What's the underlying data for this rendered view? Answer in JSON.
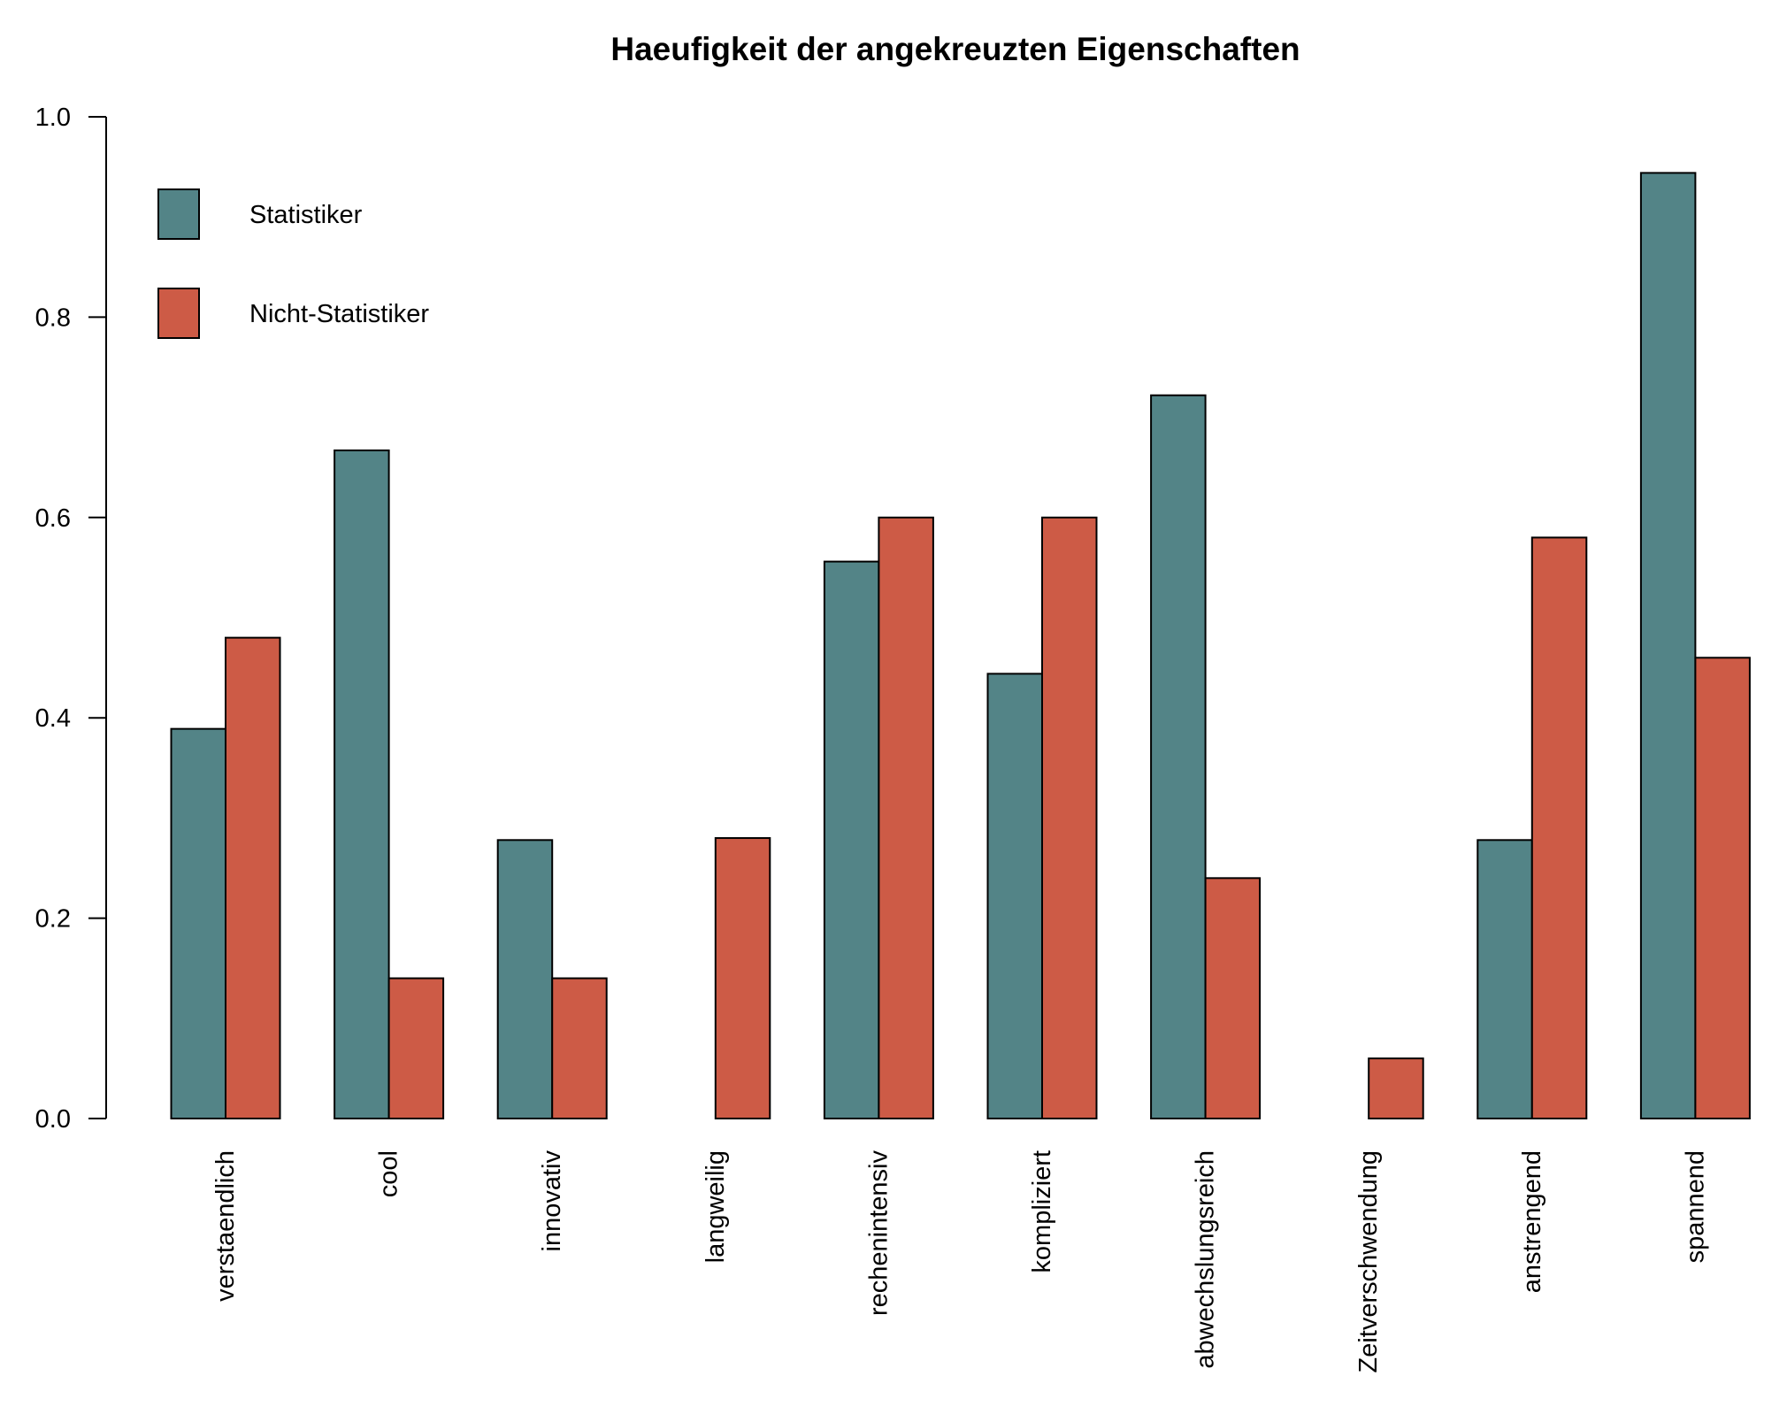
{
  "chart_data": {
    "type": "bar",
    "title": "Haeufigkeit der angekreuzten Eigenschaften",
    "xlabel": "",
    "ylabel": "",
    "ylim": [
      0,
      1.0
    ],
    "yticks": [
      0.0,
      0.2,
      0.4,
      0.6,
      0.8,
      1.0
    ],
    "ytick_labels": [
      "0.0",
      "0.2",
      "0.4",
      "0.6",
      "0.8",
      "1.0"
    ],
    "categories": [
      "verstaendlich",
      "cool",
      "innovativ",
      "langweilig",
      "rechenintensiv",
      "kompliziert",
      "abwechslungsreich",
      "Zeitverschwendung",
      "anstrengend",
      "spannend"
    ],
    "series": [
      {
        "name": "Statistiker",
        "color": "#538487",
        "values": [
          0.389,
          0.667,
          0.278,
          0.0,
          0.556,
          0.444,
          0.722,
          0.0,
          0.278,
          0.944
        ]
      },
      {
        "name": "Nicht-Statistiker",
        "color": "#cd5b46",
        "values": [
          0.48,
          0.14,
          0.14,
          0.28,
          0.6,
          0.6,
          0.24,
          0.06,
          0.58,
          0.46
        ]
      }
    ],
    "legend_position": "top-left",
    "grid": false
  }
}
